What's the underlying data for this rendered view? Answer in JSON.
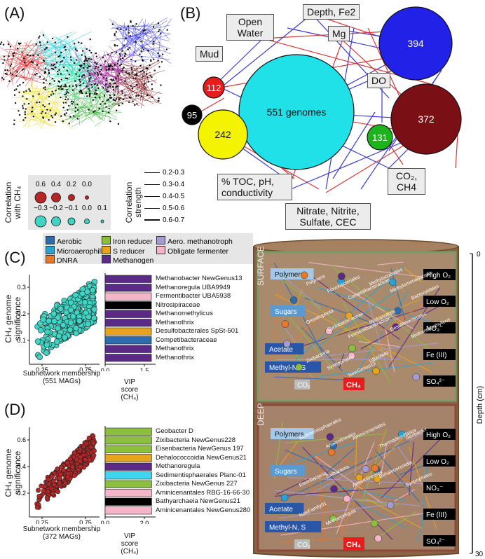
{
  "panels": {
    "a": "(A)",
    "b": "(B)",
    "c": "(C)",
    "d": "(D)"
  },
  "legendA": {
    "corr_title": "Correlation with CH₄",
    "corr_pos": [
      "0.6",
      "0.4",
      "0.2",
      "0.0"
    ],
    "corr_neg": [
      "−0.3",
      "−0.2",
      "−0.1",
      "0.0",
      "0.1"
    ],
    "strength_title": "Correlation strength",
    "strength": [
      "0.2-0.3",
      "0.3-0.4",
      "0.4-0.5",
      "0.5-0.6",
      "0.6-0.7"
    ]
  },
  "network_b": {
    "genomes_label": "551 genomes",
    "nodes": [
      "394",
      "372",
      "242",
      "112",
      "95",
      "131"
    ],
    "labels": [
      "Open Water",
      "Depth, Fe2",
      "Mg",
      "Mud",
      "DO",
      "% TOC, pH, conductivity",
      "Nitrate, Nitrite, Sulfate, CEC",
      "CO₂, CH4"
    ]
  },
  "metabolism_legend": [
    "Aerobic",
    "Microaerophillic",
    "DNRA",
    "Iron reducer",
    "S reducer",
    "Methanogen",
    "Aero. methanotroph",
    "Obligate fermenter"
  ],
  "colors": {
    "aerobic": "#2b6cb0",
    "microaero": "#29a3d6",
    "dnra": "#e8792b",
    "iron": "#8cbf3f",
    "sred": "#e6a41e",
    "methanogen": "#5b2a86",
    "aero_methanotroph": "#a79cd1",
    "oblig_fermenter": "#f5b5c8",
    "teal": "#3fd4c4",
    "darkred": "#8b1a1a",
    "soil": "#a5815f"
  },
  "panel_c": {
    "ylabel": "CH₄ genome significance",
    "xlabel": "Subnetwork membership",
    "xlabel2": "(551 MAGs)",
    "yticks": [
      "0.3",
      "0.2",
      "0.1"
    ],
    "xticks": [
      "0.25",
      "0.75"
    ],
    "vip_label": "VIP score (CH₄)",
    "vip_ticks": [
      "0.0",
      "1.5"
    ],
    "bars": [
      {
        "name": "Methanobacter NewGenus13",
        "value": 1.7,
        "color": "#5b2a86"
      },
      {
        "name": "Methanoregula UBA9949",
        "value": 1.7,
        "color": "#5b2a86"
      },
      {
        "name": "Fermentibacter UBA5938",
        "value": 1.7,
        "color": "#f5b5c8"
      },
      {
        "name": "Nitrosipiraceae",
        "value": 1.7,
        "color": "#000000"
      },
      {
        "name": "Methanomethylicus",
        "value": 1.7,
        "color": "#5b2a86"
      },
      {
        "name": "Methanothrix",
        "value": 1.7,
        "color": "#5b2a86"
      },
      {
        "name": "Desulfobacterales SpSt-501",
        "value": 1.7,
        "color": "#e6a41e"
      },
      {
        "name": "Competibacteraceae",
        "value": 1.7,
        "color": "#2b6cb0"
      },
      {
        "name": "Methanothrix",
        "value": 1.7,
        "color": "#5b2a86"
      },
      {
        "name": "Methanothrix",
        "value": 1.7,
        "color": "#5b2a86"
      }
    ]
  },
  "panel_d": {
    "ylabel": "CH₄ genome significance",
    "xlabel": "Subnetwork membership",
    "xlabel2": "(372 MAGs)",
    "yticks": [
      "0.6",
      "0.4",
      "0.2"
    ],
    "xticks": [
      "0.25",
      "0.75"
    ],
    "vip_label": "VIP score (CH₄)",
    "vip_ticks": [
      "0.0",
      "2.0"
    ],
    "bars": [
      {
        "name": "Geobacter D",
        "value": 2.1,
        "color": "#8cbf3f"
      },
      {
        "name": "Zixibacteria NewGenus228",
        "value": 2.1,
        "color": "#8cbf3f"
      },
      {
        "name": "Eisenbacteria NewGenus 197",
        "value": 2.1,
        "color": "#8cbf3f"
      },
      {
        "name": "Dehalococcoidia NewGenus21",
        "value": 2.1,
        "color": "#e6a41e"
      },
      {
        "name": "Methanoregula",
        "value": 2.1,
        "color": "#5b2a86"
      },
      {
        "name": "Sedimentisphaerales Planc-01",
        "value": 2.1,
        "color": "#3fd4f0"
      },
      {
        "name": "Zixibacteria NewGenus 227",
        "value": 2.1,
        "color": "#8cbf3f"
      },
      {
        "name": "Aminicenantales RBG-16-66-30",
        "value": 2.1,
        "color": "#f5b5c8"
      },
      {
        "name": "Bathyarchaeia NewGenus21",
        "value": 2.1,
        "color": "#000000"
      },
      {
        "name": "Aminicenantales NewGenus280",
        "value": 2.1,
        "color": "#f5b5c8"
      }
    ]
  },
  "soil": {
    "surface": "SURFACE",
    "deep": "DEEP",
    "depth_label": "Depth (cm)",
    "depth_ticks": [
      "0",
      "30"
    ],
    "left_boxes": [
      "Polymers",
      "Sugars",
      "Acetate",
      "Methyl-N, S"
    ],
    "right_boxes": [
      "High O₂",
      "Low O₂",
      "NO₃⁻",
      "Fe (III)",
      "SO₄²⁻"
    ],
    "co2": "CO₂",
    "ch4": "CH₄",
    "surface_taxa": [
      "Polymers",
      "Flavobacteriales",
      "Competibacteraceae",
      "Methylococcales",
      "Methylomonadaceae",
      "Bacteroidales",
      "Omnitrophota",
      "Cyclobacteraceae",
      "Fermentibacteraceae",
      "Methanothrix",
      "Desulfobacterales",
      "Methanomethylicus",
      "Zixibacteria",
      "Syntrophales",
      "NewGenus13",
      "UBA9949"
    ],
    "deep_taxa": [
      "Sedimentisphaerales",
      "Anaerolineales",
      "Aminicenantales",
      "Thermodesulfatica",
      "Geobacter",
      "Eisenbacteria",
      "Zixibacteria",
      "Anaerolineales",
      "Dehalococcoidia",
      "Syntrophales",
      "NewFamily01",
      "Methanoregula"
    ]
  }
}
